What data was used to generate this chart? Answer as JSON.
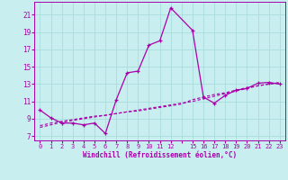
{
  "xlabel": "Windchill (Refroidissement éolien,°C)",
  "background_color": "#c8eef0",
  "grid_color": "#aadddd",
  "line_color": "#aa00aa",
  "x_positions": [
    0,
    1,
    2,
    3,
    4,
    5,
    6,
    7,
    8,
    9,
    10,
    11,
    12,
    13,
    14,
    15,
    16,
    17,
    18,
    19,
    20,
    21,
    22
  ],
  "x_labels": [
    "0",
    "1",
    "2",
    "3",
    "4",
    "5",
    "6",
    "7",
    "8",
    "9",
    "10",
    "11",
    "12",
    "",
    "15",
    "16",
    "17",
    "18",
    "19",
    "20",
    "21",
    "22",
    "23"
  ],
  "y_ticks": [
    7,
    9,
    11,
    13,
    15,
    17,
    19,
    21
  ],
  "xlim": [
    -0.5,
    22.5
  ],
  "ylim": [
    6.5,
    22.5
  ],
  "line1_x": [
    0,
    1,
    2,
    3,
    4,
    5,
    6,
    7,
    8,
    9,
    10,
    11,
    12,
    14,
    15,
    16,
    17,
    18,
    19,
    20,
    21,
    22
  ],
  "line1_y": [
    10.0,
    9.1,
    8.5,
    8.5,
    8.3,
    8.5,
    7.3,
    11.2,
    14.3,
    14.5,
    17.5,
    18.0,
    21.8,
    19.2,
    11.5,
    10.8,
    11.7,
    12.3,
    12.5,
    13.1,
    13.2,
    13.0
  ],
  "line2_x": [
    0,
    1,
    2,
    3,
    4,
    5,
    6,
    7,
    8,
    9,
    10,
    11,
    12,
    13,
    14,
    15,
    16,
    17,
    18,
    19,
    20,
    21,
    22
  ],
  "line2_y": [
    8.2,
    8.5,
    8.7,
    8.9,
    9.1,
    9.3,
    9.4,
    9.6,
    9.8,
    9.9,
    10.1,
    10.3,
    10.5,
    10.7,
    11.2,
    11.5,
    11.8,
    12.0,
    12.3,
    12.6,
    12.8,
    13.0,
    13.2
  ],
  "line3_x": [
    0,
    1,
    2,
    3,
    4,
    5,
    6,
    7,
    8,
    9,
    10,
    11,
    12,
    13,
    14,
    15,
    16,
    17,
    18,
    19,
    20,
    21,
    22
  ],
  "line3_y": [
    8.0,
    8.3,
    8.6,
    8.8,
    9.0,
    9.2,
    9.4,
    9.6,
    9.8,
    10.0,
    10.2,
    10.4,
    10.6,
    10.8,
    11.0,
    11.3,
    11.6,
    11.9,
    12.2,
    12.5,
    12.8,
    13.0,
    13.1
  ]
}
